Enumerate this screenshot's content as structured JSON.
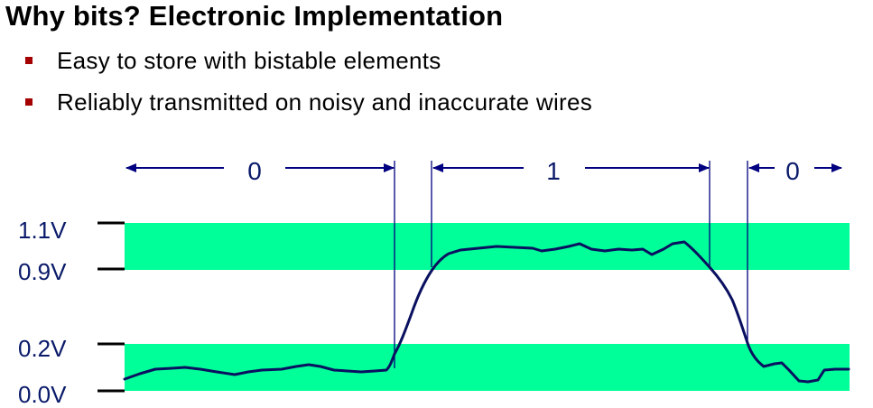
{
  "title": "Why bits?  Electronic Implementation",
  "bullets": [
    {
      "text": "Easy to store with bistable elements"
    },
    {
      "text": "Reliably transmitted on noisy and inaccurate wires"
    }
  ],
  "diagram": {
    "voltage_labels": [
      "1.1V",
      "0.9V",
      "0.2V",
      "0.0V"
    ],
    "bit_labels": [
      "0",
      "1",
      "0"
    ],
    "colors": {
      "band": "#00ff99",
      "signal": "#0a1060",
      "guide": "#000080",
      "text": "#0a1a6a"
    }
  }
}
